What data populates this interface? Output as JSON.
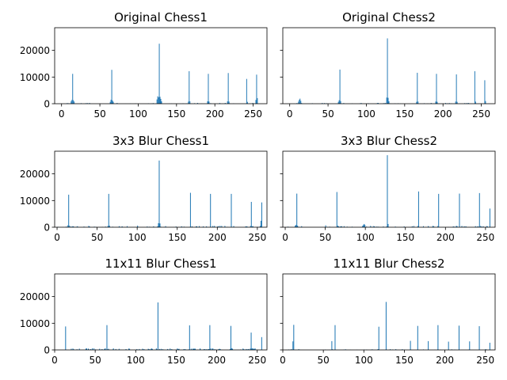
{
  "chart_data": [
    {
      "type": "bar",
      "title": "Original Chess1",
      "xlim": [
        -9,
        268
      ],
      "ylim": [
        0,
        28500
      ],
      "xticks": [
        0,
        50,
        100,
        150,
        200,
        250
      ],
      "yticks": [
        0,
        10000,
        20000
      ],
      "show_xtick_labels": true,
      "show_ytick_labels": true,
      "spikes": [
        [
          12,
          900
        ],
        [
          13,
          1400
        ],
        [
          14,
          11200
        ],
        [
          15,
          1300
        ],
        [
          16,
          800
        ],
        [
          63,
          700
        ],
        [
          64,
          1500
        ],
        [
          65,
          12700
        ],
        [
          66,
          1200
        ],
        [
          67,
          700
        ],
        [
          124,
          1600
        ],
        [
          125,
          2800
        ],
        [
          126,
          2400
        ],
        [
          127,
          22500
        ],
        [
          128,
          2600
        ],
        [
          129,
          1800
        ],
        [
          130,
          900
        ],
        [
          165,
          800
        ],
        [
          166,
          12200
        ],
        [
          167,
          900
        ],
        [
          190,
          900
        ],
        [
          191,
          11200
        ],
        [
          192,
          800
        ],
        [
          216,
          900
        ],
        [
          217,
          11500
        ],
        [
          218,
          800
        ],
        [
          241,
          9300
        ],
        [
          242,
          700
        ],
        [
          253,
          1400
        ],
        [
          254,
          10900
        ],
        [
          255,
          2100
        ]
      ],
      "noise_level": 300,
      "noise_count": 40
    },
    {
      "type": "bar",
      "title": "Original Chess2",
      "xlim": [
        -9,
        268
      ],
      "ylim": [
        0,
        28500
      ],
      "xticks": [
        0,
        50,
        100,
        150,
        200,
        250
      ],
      "yticks": [
        0,
        10000,
        20000
      ],
      "show_xtick_labels": true,
      "show_ytick_labels": false,
      "spikes": [
        [
          11,
          800
        ],
        [
          12,
          1500
        ],
        [
          13,
          1900
        ],
        [
          14,
          1100
        ],
        [
          63,
          700
        ],
        [
          64,
          1300
        ],
        [
          65,
          12800
        ],
        [
          66,
          1000
        ],
        [
          126,
          2300
        ],
        [
          127,
          24500
        ],
        [
          128,
          2200
        ],
        [
          129,
          900
        ],
        [
          165,
          700
        ],
        [
          166,
          11600
        ],
        [
          167,
          800
        ],
        [
          190,
          800
        ],
        [
          191,
          11200
        ],
        [
          192,
          700
        ],
        [
          216,
          800
        ],
        [
          217,
          11000
        ],
        [
          218,
          700
        ],
        [
          241,
          12200
        ],
        [
          242,
          800
        ],
        [
          254,
          8800
        ],
        [
          255,
          1000
        ]
      ],
      "noise_level": 300,
      "noise_count": 40
    },
    {
      "type": "bar",
      "title": "3x3 Blur Chess1",
      "xlim": [
        -3,
        262
      ],
      "ylim": [
        0,
        28500
      ],
      "xticks": [
        0,
        50,
        100,
        150,
        200,
        250
      ],
      "yticks": [
        0,
        10000,
        20000
      ],
      "show_xtick_labels": true,
      "show_ytick_labels": true,
      "spikes": [
        [
          13,
          700
        ],
        [
          14,
          12200
        ],
        [
          15,
          600
        ],
        [
          63,
          500
        ],
        [
          64,
          12500
        ],
        [
          65,
          600
        ],
        [
          100,
          600
        ],
        [
          126,
          1500
        ],
        [
          127,
          25000
        ],
        [
          128,
          1400
        ],
        [
          166,
          12900
        ],
        [
          191,
          12500
        ],
        [
          217,
          12500
        ],
        [
          242,
          9500
        ],
        [
          254,
          2400
        ],
        [
          255,
          9300
        ]
      ],
      "noise_level": 500,
      "noise_count": 70
    },
    {
      "type": "bar",
      "title": "3x3 Blur Chess2",
      "xlim": [
        -3,
        262
      ],
      "ylim": [
        0,
        28500
      ],
      "xticks": [
        0,
        50,
        100,
        150,
        200,
        250
      ],
      "yticks": [
        0,
        10000,
        20000
      ],
      "show_xtick_labels": true,
      "show_ytick_labels": false,
      "spikes": [
        [
          12,
          600
        ],
        [
          13,
          900
        ],
        [
          14,
          12600
        ],
        [
          15,
          600
        ],
        [
          50,
          700
        ],
        [
          64,
          13200
        ],
        [
          65,
          600
        ],
        [
          97,
          800
        ],
        [
          98,
          1200
        ],
        [
          99,
          900
        ],
        [
          127,
          27000
        ],
        [
          128,
          1200
        ],
        [
          166,
          13400
        ],
        [
          191,
          12500
        ],
        [
          217,
          12600
        ],
        [
          242,
          12800
        ],
        [
          255,
          7000
        ]
      ],
      "noise_level": 500,
      "noise_count": 70
    },
    {
      "type": "bar",
      "title": "11x11 Blur Chess1",
      "xlim": [
        0,
        262
      ],
      "ylim": [
        0,
        28500
      ],
      "xticks": [
        0,
        50,
        100,
        150,
        200,
        250
      ],
      "yticks": [
        0,
        10000,
        20000
      ],
      "show_xtick_labels": true,
      "show_ytick_labels": true,
      "spikes": [
        [
          13,
          8800
        ],
        [
          64,
          9300
        ],
        [
          127,
          17800
        ],
        [
          166,
          9200
        ],
        [
          191,
          9300
        ],
        [
          217,
          9000
        ],
        [
          242,
          6500
        ],
        [
          255,
          4800
        ]
      ],
      "noise_level": 600,
      "noise_count": 150,
      "noise_min_x": 20,
      "noise_max_x": 250
    },
    {
      "type": "bar",
      "title": "11x11 Blur Chess2",
      "xlim": [
        0,
        262
      ],
      "ylim": [
        0,
        28500
      ],
      "xticks": [
        0,
        50,
        100,
        150,
        200,
        250
      ],
      "yticks": [
        0,
        10000,
        20000
      ],
      "show_xtick_labels": true,
      "show_ytick_labels": false,
      "spikes": [
        [
          12,
          3200
        ],
        [
          13,
          9400
        ],
        [
          60,
          3300
        ],
        [
          64,
          9300
        ],
        [
          118,
          8700
        ],
        [
          127,
          18000
        ],
        [
          157,
          3400
        ],
        [
          166,
          9000
        ],
        [
          179,
          3300
        ],
        [
          191,
          9300
        ],
        [
          204,
          3100
        ],
        [
          217,
          9100
        ],
        [
          230,
          3200
        ],
        [
          242,
          8900
        ],
        [
          255,
          2700
        ]
      ],
      "noise_level": 300,
      "noise_count": 50
    }
  ],
  "colors": {
    "bar": "#1f77b4",
    "axis": "#000000",
    "background": "#ffffff"
  }
}
